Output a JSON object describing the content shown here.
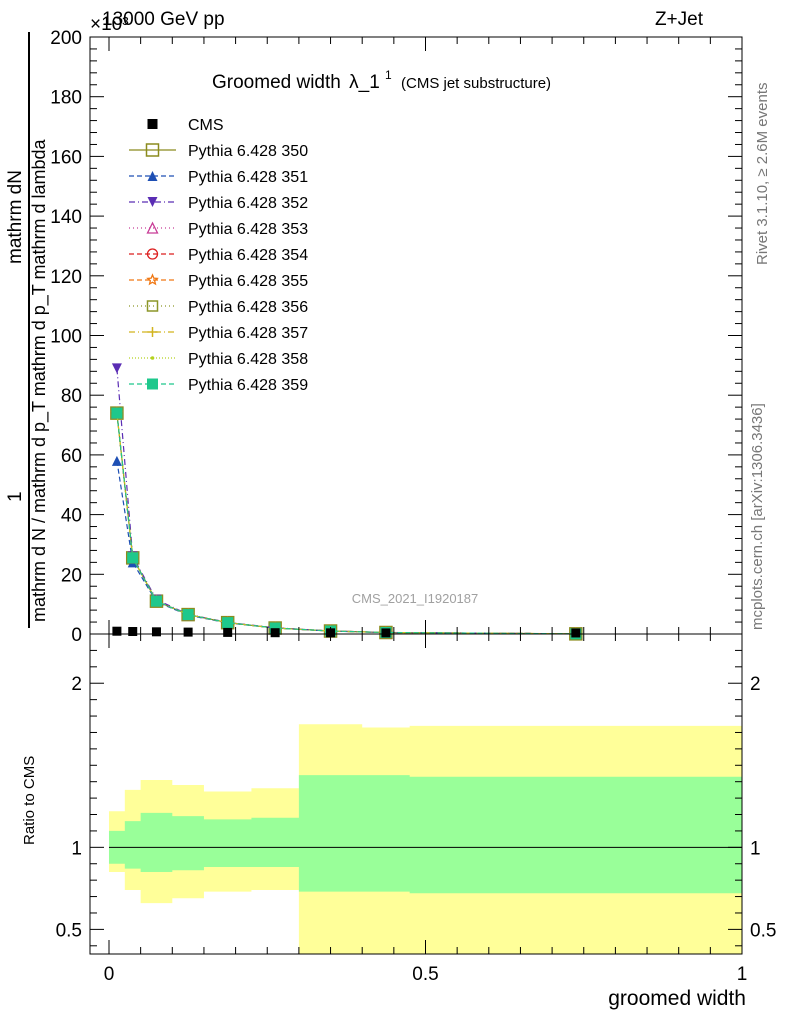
{
  "header": {
    "energy_label": "13000 GeV pp",
    "exponent_label": "×10³",
    "process_label": "Z+Jet",
    "analysis_id": "CMS_2021_I1920187"
  },
  "side_labels": {
    "rivet": "Rivet 3.1.10, ≥ 2.6M events",
    "mcplots": "mcplots.cern.ch [arXiv:1306.3436]"
  },
  "axis_labels": {
    "ylabel_main_numerator_1": "1",
    "ylabel_main_numerator_2": "mathrm dN",
    "ylabel_main_denominator": "mathrm d N / mathrm d p_T mathrm d p_T mathrm d lambda",
    "ylabel_ratio": "Ratio to CMS",
    "xlabel": "groomed width"
  },
  "chart_data": {
    "type": "line",
    "title_main": "Groomed width",
    "title_lambda": "λ_1",
    "title_super": "1",
    "title_note": "(CMS jet substructure)",
    "x_range": [
      -0.03,
      1.0
    ],
    "y_main_range": [
      0,
      200
    ],
    "y_main_ticks": [
      0,
      20,
      40,
      60,
      80,
      100,
      120,
      140,
      160,
      180,
      200
    ],
    "y_ratio_range": [
      0.35,
      2.3
    ],
    "y_ratio_ticks": [
      0.5,
      1,
      2
    ],
    "x_ticks": [
      0,
      0.5,
      1
    ],
    "x_tick_labels": [
      "0",
      "0.5",
      "1"
    ],
    "bin_edges": [
      0,
      0.025,
      0.05,
      0.1,
      0.15,
      0.225,
      0.3,
      0.4,
      0.475,
      1.0
    ],
    "bin_centers": [
      0.0125,
      0.0375,
      0.075,
      0.125,
      0.1875,
      0.2625,
      0.35,
      0.4375,
      0.7375
    ],
    "cms": {
      "name": "CMS",
      "color": "#000000",
      "marker": "square-filled",
      "values": [
        0.6,
        0.5,
        0.4,
        0.3,
        0.2,
        0.1,
        0.05,
        0.03,
        0.01
      ]
    },
    "series": [
      {
        "name": "Pythia 6.428 350",
        "color": "#8b8b1e",
        "dash": "none",
        "marker": "square-open",
        "values": [
          74,
          25.5,
          11,
          6.5,
          3.8,
          2.0,
          1.0,
          0.5,
          0.05
        ]
      },
      {
        "name": "Pythia 6.428 351",
        "color": "#1e4fb4",
        "dash": "5,3",
        "marker": "triangle-up-filled",
        "values": [
          58,
          24,
          10.8,
          6.3,
          3.7,
          2.0,
          1.0,
          0.5,
          0.05
        ]
      },
      {
        "name": "Pythia 6.428 352",
        "color": "#5a2db4",
        "dash": "6,3,1,3",
        "marker": "triangle-down-filled",
        "values": [
          89,
          26,
          11.5,
          6.6,
          3.9,
          2.1,
          1.0,
          0.5,
          0.05
        ]
      },
      {
        "name": "Pythia 6.428 353",
        "color": "#c83c96",
        "dash": "1,3",
        "marker": "triangle-up-open",
        "values": [
          74,
          25.5,
          11,
          6.5,
          3.8,
          2.0,
          1.0,
          0.5,
          0.05
        ]
      },
      {
        "name": "Pythia 6.428 354",
        "color": "#dc1e1e",
        "dash": "5,3",
        "marker": "circle-open",
        "values": [
          74,
          25.5,
          11,
          6.5,
          3.8,
          2.0,
          1.0,
          0.5,
          0.05
        ]
      },
      {
        "name": "Pythia 6.428 355",
        "color": "#f07814",
        "dash": "5,3",
        "marker": "star-open",
        "values": [
          74,
          25.5,
          11,
          6.5,
          3.8,
          2.0,
          1.0,
          0.5,
          0.05
        ]
      },
      {
        "name": "Pythia 6.428 356",
        "color": "#8c9628",
        "dash": "1,3",
        "marker": "square-open",
        "values": [
          74,
          25.5,
          11,
          6.5,
          3.8,
          2.0,
          1.0,
          0.5,
          0.05
        ]
      },
      {
        "name": "Pythia 6.428 357",
        "color": "#d2b41e",
        "dash": "6,3,1,3",
        "marker": "plus",
        "values": [
          74,
          25.5,
          11,
          6.5,
          3.8,
          2.0,
          1.0,
          0.5,
          0.05
        ]
      },
      {
        "name": "Pythia 6.428 358",
        "color": "#b4d21e",
        "dash": "1,2",
        "marker": "dot",
        "values": [
          74,
          25.5,
          11,
          6.5,
          3.8,
          2.0,
          1.0,
          0.5,
          0.05
        ]
      },
      {
        "name": "Pythia 6.428 359",
        "color": "#1ec88c",
        "dash": "5,3",
        "marker": "square-filled",
        "values": [
          74,
          25.5,
          11,
          6.5,
          3.8,
          2.0,
          1.0,
          0.5,
          0.05
        ]
      }
    ],
    "ratio_bands": {
      "inner_color": "#99ff99",
      "outer_color": "#ffff99",
      "inner_lo": [
        0.9,
        0.87,
        0.85,
        0.86,
        0.88,
        0.88,
        0.73,
        0.73,
        0.72
      ],
      "inner_hi": [
        1.1,
        1.16,
        1.21,
        1.19,
        1.17,
        1.18,
        1.44,
        1.44,
        1.43
      ],
      "outer_lo": [
        0.85,
        0.74,
        0.66,
        0.69,
        0.73,
        0.74,
        0.3,
        0.3,
        0.3
      ],
      "outer_hi": [
        1.22,
        1.35,
        1.41,
        1.38,
        1.34,
        1.36,
        1.75,
        1.73,
        1.74
      ]
    }
  }
}
